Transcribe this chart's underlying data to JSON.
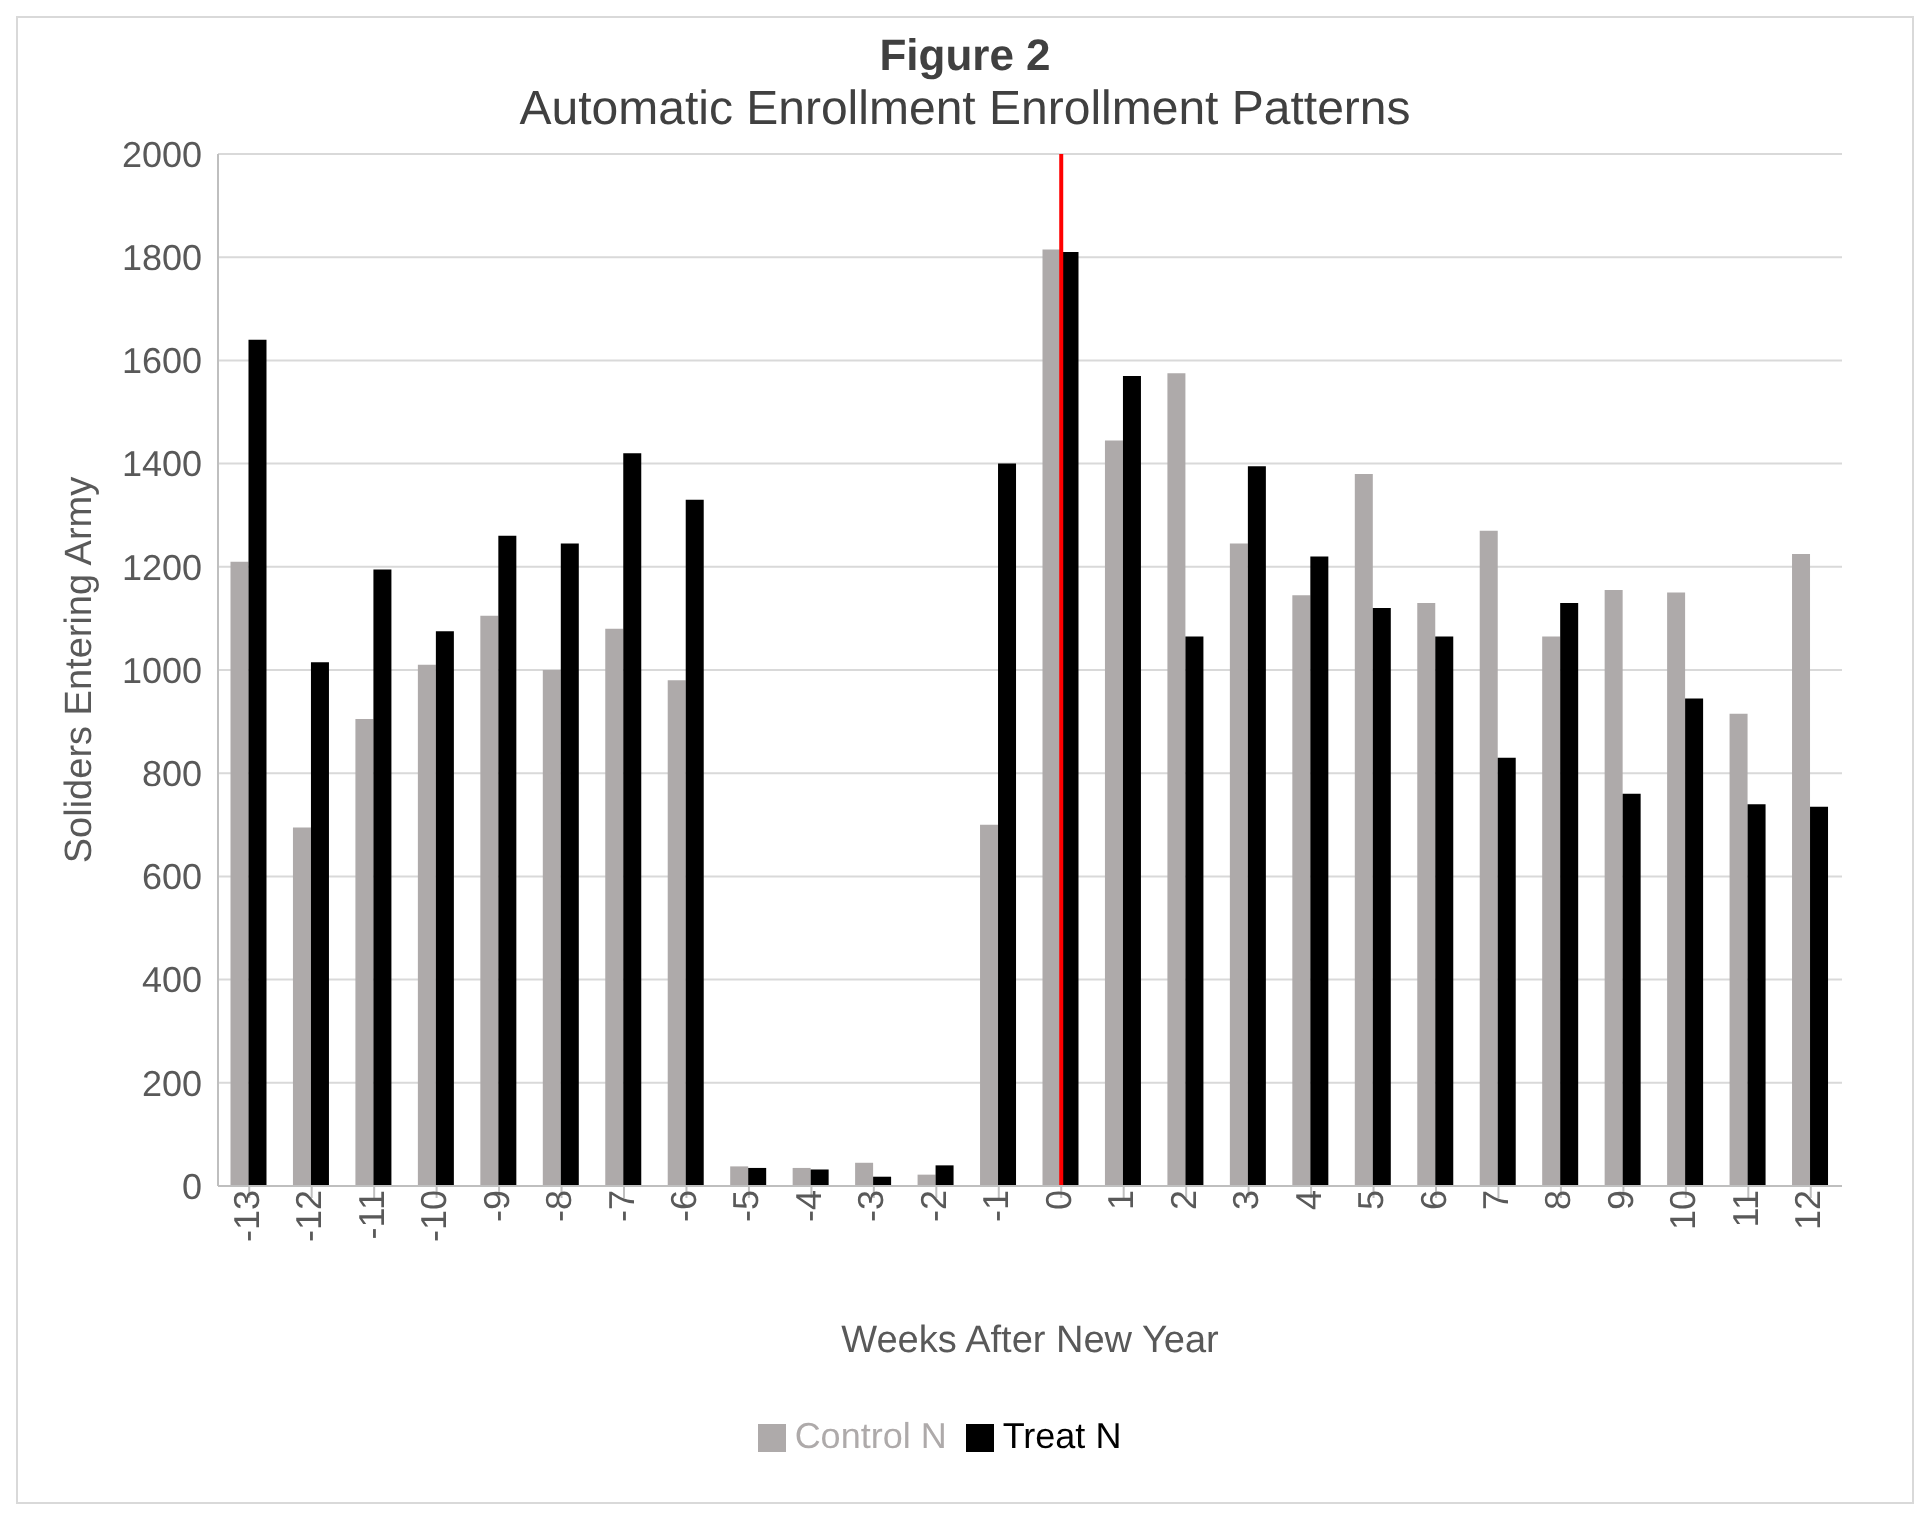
{
  "chart_data": {
    "type": "bar",
    "title": "Figure 2",
    "subtitle": "Automatic Enrollment Enrollment Patterns",
    "xlabel": "Weeks After New Year",
    "ylabel": "Soliders Entering Army",
    "categories": [
      "-13",
      "-12",
      "-11",
      "-10",
      "-9",
      "-8",
      "-7",
      "-6",
      "-5",
      "-4",
      "-3",
      "-2",
      "-1",
      "0",
      "1",
      "2",
      "3",
      "4",
      "5",
      "6",
      "7",
      "8",
      "9",
      "10",
      "11",
      "12"
    ],
    "series": [
      {
        "name": "Control N",
        "color": "#aeaaaa",
        "values": [
          1210,
          695,
          905,
          1010,
          1105,
          1000,
          1080,
          980,
          38,
          35,
          45,
          22,
          700,
          1815,
          1445,
          1575,
          1245,
          1145,
          1380,
          1130,
          1270,
          1065,
          1155,
          1150,
          915,
          1225
        ]
      },
      {
        "name": "Treat N",
        "color": "#000000",
        "values": [
          1640,
          1015,
          1195,
          1075,
          1260,
          1245,
          1420,
          1330,
          35,
          32,
          18,
          40,
          1400,
          1810,
          1570,
          1065,
          1395,
          1220,
          1120,
          1065,
          830,
          1130,
          760,
          945,
          740,
          735
        ]
      }
    ],
    "ylim": [
      0,
      2000
    ],
    "yticks": [
      0,
      200,
      400,
      600,
      800,
      1000,
      1200,
      1400,
      1600,
      1800,
      2000
    ],
    "ref_lines": [
      {
        "axis": "x",
        "value": "0",
        "color": "#ff0000"
      }
    ],
    "grid": "y",
    "legend": "bottom"
  }
}
